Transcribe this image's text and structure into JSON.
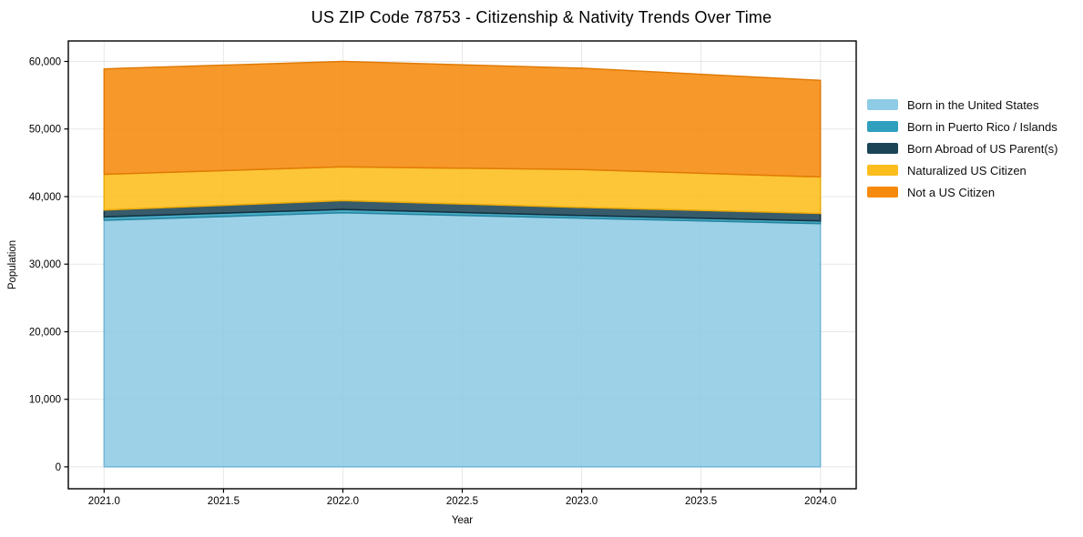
{
  "chart_data": {
    "type": "area",
    "stacked": true,
    "title": "US ZIP Code 78753 - Citizenship & Nativity Trends Over Time",
    "xlabel": "Year",
    "ylabel": "Population",
    "x": [
      2021,
      2022,
      2023,
      2024
    ],
    "series": [
      {
        "id": "born-us",
        "name": "Born in the United States",
        "color": "#8ecbe5",
        "edge": "#6fb6d6",
        "values": [
          36500,
          37600,
          36800,
          36000
        ]
      },
      {
        "id": "born-pr-islands",
        "name": "Born in Puerto Rico / Islands",
        "color": "#2f9fbe",
        "edge": "#27859f",
        "values": [
          500,
          500,
          400,
          400
        ]
      },
      {
        "id": "born-abroad",
        "name": "Born Abroad of US Parent(s)",
        "color": "#1b4457",
        "edge": "#12303e",
        "values": [
          1000,
          1300,
          1200,
          1100
        ]
      },
      {
        "id": "naturalized",
        "name": "Naturalized US Citizen",
        "color": "#fcbe1d",
        "edge": "#edab07",
        "values": [
          5300,
          5000,
          5600,
          5400
        ]
      },
      {
        "id": "not-citizen",
        "name": "Not a US Citizen",
        "color": "#f68a0d",
        "edge": "#e07b06",
        "values": [
          15600,
          15600,
          15000,
          14300
        ]
      }
    ],
    "totals": [
      58900,
      60000,
      59000,
      57200
    ],
    "x_ticks": [
      "2021.0",
      "2021.5",
      "2022.0",
      "2022.5",
      "2023.0",
      "2023.5",
      "2024.0"
    ],
    "x_tick_values": [
      2021,
      2021.5,
      2022,
      2022.5,
      2023,
      2023.5,
      2024
    ],
    "y_ticks": [
      "0",
      "10,000",
      "20,000",
      "30,000",
      "40,000",
      "50,000",
      "60,000"
    ],
    "y_tick_values": [
      0,
      10000,
      20000,
      30000,
      40000,
      50000,
      60000
    ],
    "xlim": [
      2020.85,
      2024.15
    ],
    "ylim": [
      -3240,
      63030
    ],
    "grid": true,
    "grid_color": "#e7e7e7",
    "background": "#ffffff",
    "legend_position": "right-outside",
    "fill_opacity": 0.88
  }
}
